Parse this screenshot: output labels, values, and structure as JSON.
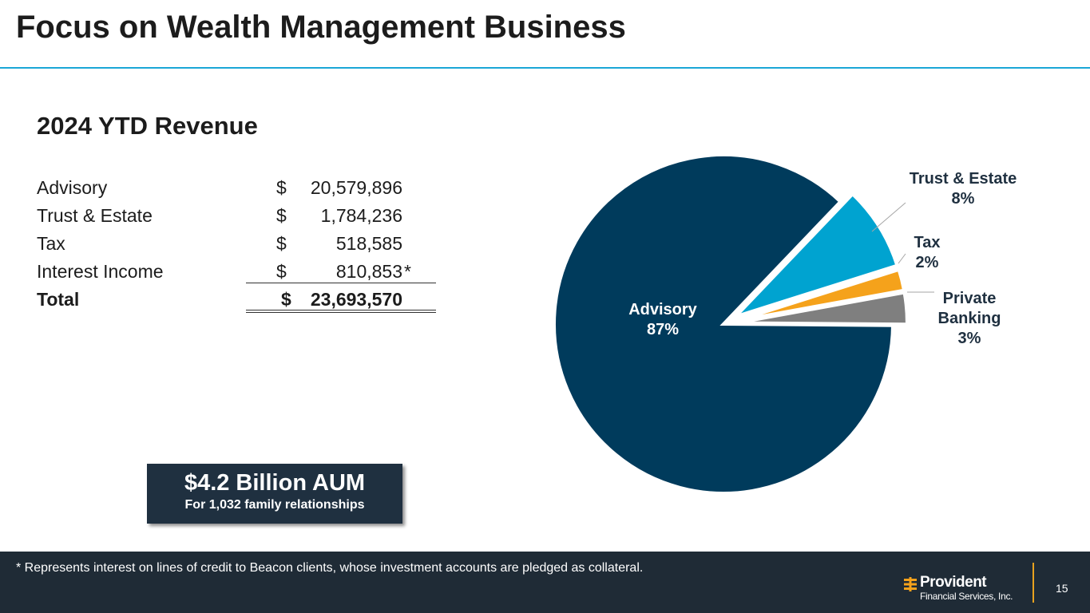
{
  "slide": {
    "title": "Focus on Wealth Management Business",
    "subtitle": "2024 YTD Revenue",
    "page_number": "15"
  },
  "revenue_table": {
    "rows": [
      {
        "label": "Advisory",
        "currency": "$",
        "amount": "20,579,896",
        "mark": ""
      },
      {
        "label": "Trust & Estate",
        "currency": "$",
        "amount": "1,784,236",
        "mark": ""
      },
      {
        "label": "Tax",
        "currency": "$",
        "amount": "518,585",
        "mark": ""
      },
      {
        "label": "Interest Income",
        "currency": "$",
        "amount": "810,853",
        "mark": "*"
      }
    ],
    "total": {
      "label": "Total",
      "currency": "$",
      "amount": "23,693,570"
    }
  },
  "aum": {
    "headline": "$4.2 Billion AUM",
    "detail": "For 1,032 family relationships"
  },
  "footnote": "* Represents interest on lines of credit to Beacon clients, whose investment accounts are pledged as collateral.",
  "logo": {
    "name": "Provident",
    "sub": "Financial Services, Inc.",
    "icon": "provident-emblem-icon"
  },
  "chart_data": {
    "type": "pie",
    "categories": [
      "Advisory",
      "Trust & Estate",
      "Tax",
      "Private Banking"
    ],
    "values": [
      87,
      8,
      2,
      3
    ],
    "labels": [
      {
        "name_lines": [
          "Advisory"
        ],
        "pct": "87%"
      },
      {
        "name_lines": [
          "Trust & Estate"
        ],
        "pct": "8%"
      },
      {
        "name_lines": [
          "Tax"
        ],
        "pct": "2%"
      },
      {
        "name_lines": [
          "Private",
          "Banking"
        ],
        "pct": "3%"
      }
    ],
    "colors": [
      "#003b5c",
      "#00a3d0",
      "#f5a21b",
      "#7f7f7f"
    ],
    "label_colors": [
      "#ffffff",
      "#1f3040",
      "#1f3040",
      "#1f3040"
    ],
    "exploded": [
      false,
      true,
      true,
      true
    ],
    "legend": "none"
  }
}
